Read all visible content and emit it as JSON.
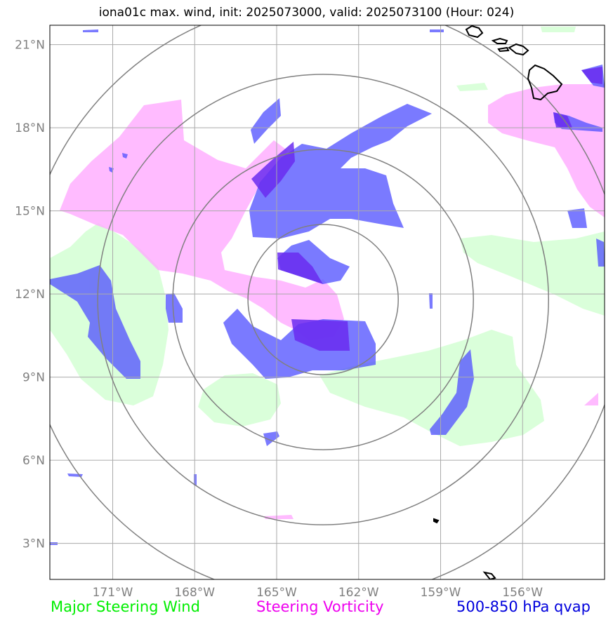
{
  "title": "iona01c max. wind, init: 2025073000, valid: 2025073100 (Hour: 024)",
  "map": {
    "lon_range": [
      -173.3,
      -153.0
    ],
    "lat_range": [
      1.7,
      21.7
    ],
    "lon_ticks": [
      "171°W",
      "168°W",
      "165°W",
      "162°W",
      "159°W",
      "156°W"
    ],
    "lat_ticks": [
      "21°N",
      "18°N",
      "15°N",
      "12°N",
      "9°N",
      "6°N",
      "3°N"
    ],
    "grid": true,
    "range_rings_center": {
      "lon": -163.3,
      "lat": 11.8
    },
    "range_rings_deg": [
      2.75,
      5.5,
      8.25,
      11.0
    ]
  },
  "legend": {
    "wind": {
      "label": "Major Steering Wind",
      "color": "#00ee00"
    },
    "vorticity": {
      "label": "Steering Vorticity",
      "color": "#ee00ee"
    },
    "qvap": {
      "label": "500-850 hPa qvap",
      "color": "#0000dd"
    }
  },
  "colors": {
    "wind_fill": "#ccffcc",
    "vort_fill": "#ffaaff",
    "qvap_fill": "#5555ff",
    "coast": "#000000",
    "grid": "#aaaaaa",
    "rings": "#808080"
  }
}
